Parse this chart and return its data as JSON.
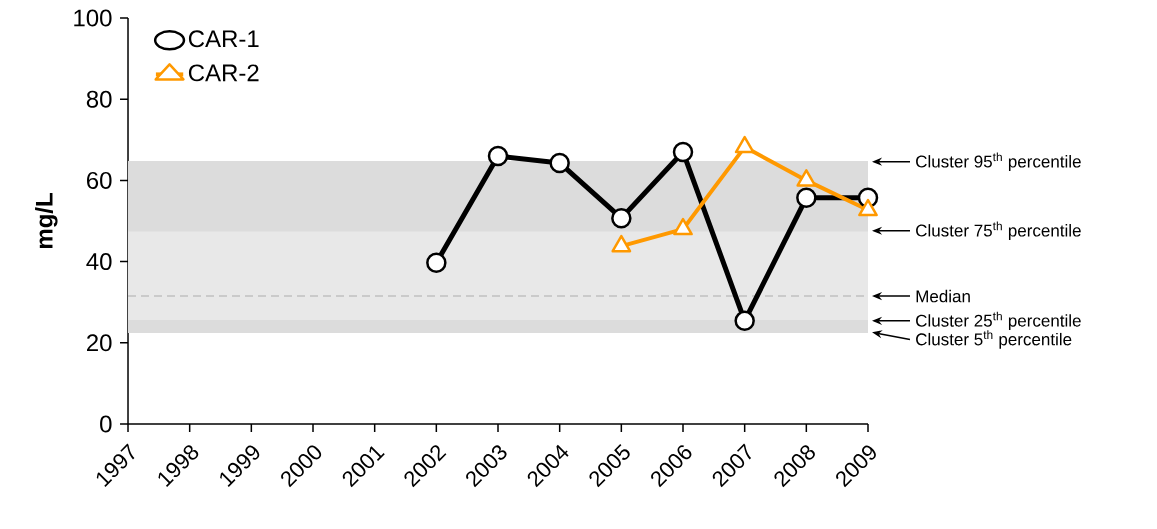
{
  "chart_data": {
    "type": "line",
    "ylabel": "mg/L",
    "series": [
      {
        "name": "CAR-1",
        "color": "#000000",
        "marker": "circle",
        "x": [
          2002,
          2003,
          2004,
          2005,
          2006,
          2007,
          2008,
          2009
        ],
        "values": [
          39.7,
          66,
          64.3,
          50.7,
          67,
          25.4,
          55.7,
          55.7
        ]
      },
      {
        "name": "CAR-2",
        "color": "#ff9900",
        "marker": "triangle",
        "x": [
          2005,
          2006,
          2007,
          2008,
          2009
        ],
        "values": [
          43.8,
          48,
          68.2,
          60,
          52.7
        ]
      }
    ],
    "xlim": [
      1997,
      2009
    ],
    "ylim": [
      0,
      100
    ],
    "xticks": [
      1997,
      1998,
      1999,
      2000,
      2001,
      2002,
      2003,
      2004,
      2005,
      2006,
      2007,
      2008,
      2009
    ],
    "yticks": [
      0,
      20,
      40,
      60,
      80,
      100
    ],
    "grid": false,
    "legend": "top left",
    "bands": [
      {
        "axis": "y",
        "from": 22.6,
        "to": 25.4,
        "color": "#dcdcdc"
      },
      {
        "axis": "y",
        "from": 25.4,
        "to": 47.6,
        "color": "#e8e8e8"
      },
      {
        "axis": "y",
        "from": 47.6,
        "to": 64.6,
        "color": "#dcdcdc"
      }
    ],
    "ref_lines": [
      {
        "axis": "y",
        "value": 64.6,
        "label": "Cluster 95$^{th}$ percentile",
        "color": "#dcdcdc",
        "line_style": "solid"
      },
      {
        "axis": "y",
        "value": 47.6,
        "label": "Cluster 75$^{th}$ percentile",
        "color": "#dcdcdc",
        "line_style": "solid"
      },
      {
        "axis": "y",
        "value": 31.5,
        "label": "Median",
        "color": "#c0c0c0",
        "line_style": "dashed"
      },
      {
        "axis": "y",
        "value": 25.4,
        "label": "Cluster 25$^{th}$ percentile",
        "color": "#dcdcdc",
        "line_style": "solid"
      },
      {
        "axis": "y",
        "value": 22.6,
        "label": "Cluster 5$^{th}$ percentile",
        "color": "#dcdcdc",
        "line_style": "solid"
      }
    ]
  }
}
